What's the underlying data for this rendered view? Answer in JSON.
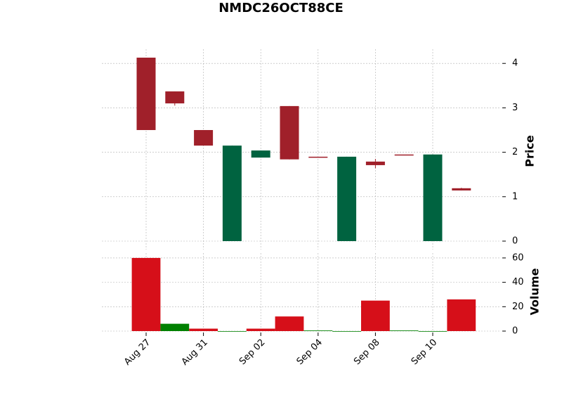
{
  "chart_data": {
    "type": "candlestick",
    "title": "NMDC26OCT88CE",
    "categories": [
      "Aug 27",
      null,
      "Aug 31",
      null,
      "Sep 02",
      null,
      "Sep 04",
      null,
      "Sep 08",
      null,
      "Sep 10",
      null
    ],
    "open": [
      4.13,
      3.37,
      2.5,
      0,
      1.88,
      3.04,
      1.9,
      0,
      1.79,
      1.95,
      0,
      1.19
    ],
    "high": [
      4.13,
      3.37,
      2.5,
      2.15,
      2.04,
      3.04,
      1.9,
      1.9,
      1.85,
      1.95,
      1.95,
      1.2
    ],
    "low": [
      2.5,
      3.05,
      2.15,
      0,
      1.88,
      1.84,
      1.9,
      0,
      1.64,
      1.95,
      0,
      1.14
    ],
    "close": [
      2.5,
      3.1,
      2.15,
      2.15,
      2.04,
      1.84,
      1.9,
      1.9,
      1.71,
      1.95,
      1.95,
      1.14
    ],
    "up_color": "#006340",
    "down_color": "#a0202a",
    "ylabel": "Price",
    "ylim": [
      -0.19,
      4.32
    ],
    "yticks": [
      0,
      1,
      2,
      3,
      4
    ],
    "volume": {
      "ylabel": "Volume",
      "values": [
        60,
        6,
        2,
        0,
        2,
        12,
        0.5,
        0,
        25,
        0.5,
        0,
        26
      ],
      "colors": [
        "#d60f19",
        "#008000",
        "#d60f19",
        "#008000",
        "#d60f19",
        "#d60f19",
        "#008000",
        "#008000",
        "#d60f19",
        "#008000",
        "#008000",
        "#d60f19"
      ],
      "ylim": [
        0,
        64
      ],
      "yticks": [
        0,
        20,
        40,
        60
      ]
    },
    "grid": true
  }
}
